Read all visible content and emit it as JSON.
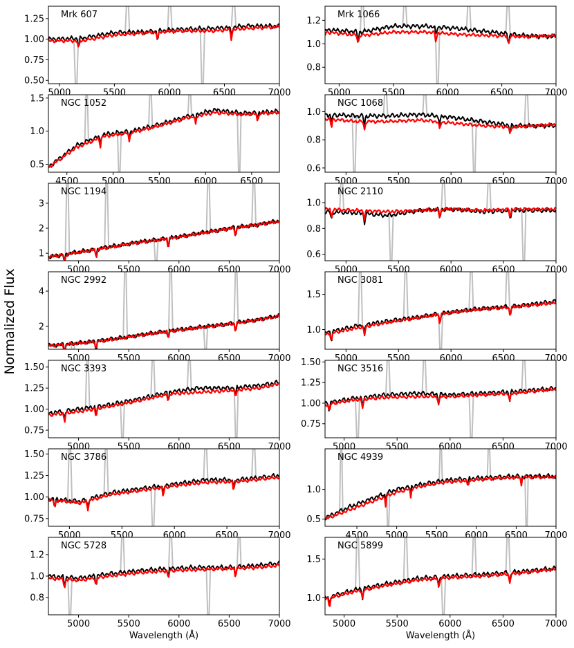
{
  "figure": {
    "ylabel": "Normalized Flux",
    "xlabel": "Wavelength ($\\AA$)"
  },
  "colors": {
    "observed": "#000000",
    "model": "#ff0000",
    "masked": "#bfbfbf",
    "axis": "#000000",
    "background": "#ffffff"
  },
  "chart_data": [
    {
      "type": "line",
      "title": "Mrk 607",
      "xlim": [
        4900,
        7000
      ],
      "ylim": [
        0.46,
        1.4
      ],
      "xticks": [
        5000,
        5500,
        6000,
        6500,
        7000
      ],
      "yticks": [
        0.5,
        0.75,
        1.0,
        1.25
      ],
      "ytick_labels": [
        "0.50",
        "0.75",
        "1.00",
        "1.25"
      ],
      "xlabel": "",
      "series": [
        {
          "name": "observed",
          "x": [
            4900,
            5200,
            5500,
            5800,
            6100,
            6400,
            6700,
            7000
          ],
          "values": [
            1.0,
            1.01,
            1.08,
            1.09,
            1.12,
            1.13,
            1.16,
            1.16
          ]
        },
        {
          "name": "model",
          "x": [
            4900,
            5200,
            5500,
            5800,
            6100,
            6400,
            6700,
            7000
          ],
          "values": [
            0.98,
            0.98,
            1.05,
            1.08,
            1.1,
            1.1,
            1.13,
            1.15
          ]
        }
      ]
    },
    {
      "type": "line",
      "title": "Mrk 1066",
      "xlim": [
        4870,
        7000
      ],
      "ylim": [
        0.66,
        1.32
      ],
      "xticks": [
        5000,
        5500,
        6000,
        6500,
        7000
      ],
      "yticks": [
        0.8,
        1.0,
        1.2
      ],
      "ytick_labels": [
        "0.8",
        "1.0",
        "1.2"
      ],
      "xlabel": "",
      "series": [
        {
          "name": "observed",
          "x": [
            4870,
            5200,
            5500,
            5800,
            6100,
            6400,
            6700,
            7000
          ],
          "values": [
            1.12,
            1.1,
            1.15,
            1.15,
            1.13,
            1.1,
            1.07,
            1.06
          ]
        },
        {
          "name": "model",
          "x": [
            4870,
            5200,
            5500,
            5800,
            6100,
            6400,
            6700,
            7000
          ],
          "values": [
            1.1,
            1.07,
            1.1,
            1.1,
            1.08,
            1.07,
            1.06,
            1.07
          ]
        }
      ]
    },
    {
      "type": "line",
      "title": "NGC 1052",
      "xlim": [
        4300,
        6800
      ],
      "ylim": [
        0.38,
        1.55
      ],
      "xticks": [
        4500,
        5000,
        5500,
        6000,
        6500
      ],
      "yticks": [
        0.5,
        1.0,
        1.5
      ],
      "ytick_labels": [
        "0.5",
        "1.0",
        "1.5"
      ],
      "xlabel": "",
      "series": [
        {
          "name": "observed",
          "x": [
            4300,
            4600,
            4900,
            5200,
            5500,
            5800,
            6100,
            6400,
            6800
          ],
          "values": [
            0.46,
            0.78,
            0.95,
            1.0,
            1.1,
            1.22,
            1.32,
            1.27,
            1.3
          ]
        },
        {
          "name": "model",
          "x": [
            4300,
            4600,
            4900,
            5200,
            5500,
            5800,
            6100,
            6400,
            6800
          ],
          "values": [
            0.45,
            0.75,
            0.92,
            0.98,
            1.08,
            1.2,
            1.28,
            1.25,
            1.28
          ]
        }
      ]
    },
    {
      "type": "line",
      "title": "NGC 1068",
      "xlim": [
        4800,
        7000
      ],
      "ylim": [
        0.57,
        1.12
      ],
      "xticks": [
        5000,
        5500,
        6000,
        6500,
        7000
      ],
      "yticks": [
        0.6,
        0.8,
        1.0
      ],
      "ytick_labels": [
        "0.6",
        "0.8",
        "1.0"
      ],
      "xlabel": "",
      "series": [
        {
          "name": "observed",
          "x": [
            4800,
            5100,
            5400,
            5700,
            6000,
            6300,
            6600,
            7000
          ],
          "values": [
            0.98,
            0.97,
            0.97,
            0.98,
            0.96,
            0.93,
            0.9,
            0.9
          ]
        },
        {
          "name": "model",
          "x": [
            4800,
            5100,
            5400,
            5700,
            6000,
            6300,
            6600,
            7000
          ],
          "values": [
            0.95,
            0.93,
            0.93,
            0.94,
            0.92,
            0.9,
            0.89,
            0.91
          ]
        }
      ]
    },
    {
      "type": "line",
      "title": "NGC 1194",
      "xlim": [
        4700,
        7000
      ],
      "ylim": [
        0.7,
        3.8
      ],
      "xticks": [
        5000,
        5500,
        6000,
        6500,
        7000
      ],
      "yticks": [
        1,
        2,
        3
      ],
      "ytick_labels": [
        "1",
        "2",
        "3"
      ],
      "xlabel": "",
      "series": [
        {
          "name": "observed",
          "x": [
            4700,
            5000,
            5300,
            5600,
            5900,
            6200,
            6500,
            6800,
            7000
          ],
          "values": [
            0.85,
            1.05,
            1.25,
            1.45,
            1.6,
            1.8,
            2.0,
            2.15,
            2.3
          ]
        },
        {
          "name": "model",
          "x": [
            4700,
            5000,
            5300,
            5600,
            5900,
            6200,
            6500,
            6800,
            7000
          ],
          "values": [
            0.85,
            1.03,
            1.23,
            1.43,
            1.58,
            1.78,
            1.98,
            2.15,
            2.28
          ]
        }
      ]
    },
    {
      "type": "line",
      "title": "NGC 2110",
      "xlim": [
        4800,
        7000
      ],
      "ylim": [
        0.55,
        1.15
      ],
      "xticks": [
        5000,
        5500,
        6000,
        6500,
        7000
      ],
      "yticks": [
        0.6,
        0.8,
        1.0
      ],
      "ytick_labels": [
        "0.6",
        "0.8",
        "1.0"
      ],
      "xlabel": "",
      "series": [
        {
          "name": "observed",
          "x": [
            4800,
            5100,
            5400,
            5700,
            6000,
            6300,
            6600,
            7000
          ],
          "values": [
            0.93,
            0.92,
            0.9,
            0.94,
            0.95,
            0.93,
            0.94,
            0.94
          ]
        },
        {
          "name": "model",
          "x": [
            4800,
            5100,
            5400,
            5700,
            6000,
            6300,
            6600,
            7000
          ],
          "values": [
            0.95,
            0.94,
            0.93,
            0.94,
            0.95,
            0.94,
            0.95,
            0.95
          ]
        }
      ]
    },
    {
      "type": "line",
      "title": "NGC 2992",
      "xlim": [
        4700,
        7000
      ],
      "ylim": [
        0.7,
        5.1
      ],
      "xticks": [
        5000,
        5500,
        6000,
        6500,
        7000
      ],
      "yticks": [
        2,
        4
      ],
      "ytick_labels": [
        "2",
        "4"
      ],
      "xlabel": "",
      "series": [
        {
          "name": "observed",
          "x": [
            4700,
            5000,
            5300,
            5600,
            5900,
            6200,
            6500,
            6800,
            7000
          ],
          "values": [
            0.9,
            1.05,
            1.25,
            1.5,
            1.75,
            1.95,
            2.15,
            2.4,
            2.6
          ]
        },
        {
          "name": "model",
          "x": [
            4700,
            5000,
            5300,
            5600,
            5900,
            6200,
            6500,
            6800,
            7000
          ],
          "values": [
            0.9,
            1.03,
            1.22,
            1.48,
            1.72,
            1.92,
            2.12,
            2.38,
            2.58
          ]
        }
      ]
    },
    {
      "type": "line",
      "title": "NGC 3081",
      "xlim": [
        4800,
        7000
      ],
      "ylim": [
        0.72,
        1.82
      ],
      "xticks": [
        5000,
        5500,
        6000,
        6500,
        7000
      ],
      "yticks": [
        1.0,
        1.5
      ],
      "ytick_labels": [
        "1.0",
        "1.5"
      ],
      "xlabel": "",
      "series": [
        {
          "name": "observed",
          "x": [
            4800,
            5100,
            5400,
            5700,
            6000,
            6300,
            6600,
            7000
          ],
          "values": [
            0.95,
            1.05,
            1.12,
            1.18,
            1.25,
            1.3,
            1.33,
            1.4
          ]
        },
        {
          "name": "model",
          "x": [
            4800,
            5100,
            5400,
            5700,
            6000,
            6300,
            6600,
            7000
          ],
          "values": [
            0.93,
            1.02,
            1.1,
            1.17,
            1.24,
            1.29,
            1.32,
            1.38
          ]
        }
      ]
    },
    {
      "type": "line",
      "title": "NGC 3393",
      "xlim": [
        4700,
        7000
      ],
      "ylim": [
        0.66,
        1.58
      ],
      "xticks": [
        5000,
        5500,
        6000,
        6500,
        7000
      ],
      "yticks": [
        0.75,
        1.0,
        1.25,
        1.5
      ],
      "ytick_labels": [
        "0.75",
        "1.00",
        "1.25",
        "1.50"
      ],
      "xlabel": "",
      "series": [
        {
          "name": "observed",
          "x": [
            4700,
            5000,
            5300,
            5600,
            5900,
            6200,
            6500,
            6800,
            7000
          ],
          "values": [
            0.95,
            1.0,
            1.05,
            1.12,
            1.2,
            1.25,
            1.25,
            1.28,
            1.32
          ]
        },
        {
          "name": "model",
          "x": [
            4700,
            5000,
            5300,
            5600,
            5900,
            6200,
            6500,
            6800,
            7000
          ],
          "values": [
            0.93,
            0.97,
            1.03,
            1.1,
            1.18,
            1.2,
            1.22,
            1.25,
            1.3
          ]
        }
      ]
    },
    {
      "type": "line",
      "title": "NGC 3516",
      "xlim": [
        4820,
        7000
      ],
      "ylim": [
        0.58,
        1.52
      ],
      "xticks": [
        5000,
        5500,
        6000,
        6500,
        7000
      ],
      "yticks": [
        0.75,
        1.0,
        1.25,
        1.5
      ],
      "ytick_labels": [
        "0.75",
        "1.00",
        "1.25",
        "1.50"
      ],
      "xlabel": "",
      "series": [
        {
          "name": "observed",
          "x": [
            4820,
            5100,
            5400,
            5700,
            6000,
            6300,
            6600,
            7000
          ],
          "values": [
            1.0,
            1.06,
            1.1,
            1.12,
            1.1,
            1.12,
            1.14,
            1.18
          ]
        },
        {
          "name": "model",
          "x": [
            4820,
            5100,
            5400,
            5700,
            6000,
            6300,
            6600,
            7000
          ],
          "values": [
            0.98,
            1.04,
            1.07,
            1.08,
            1.08,
            1.1,
            1.12,
            1.17
          ]
        }
      ]
    },
    {
      "type": "line",
      "title": "NGC 3786",
      "xlim": [
        4800,
        7000
      ],
      "ylim": [
        0.66,
        1.56
      ],
      "xticks": [
        5000,
        5500,
        6000,
        6500,
        7000
      ],
      "yticks": [
        0.75,
        1.0,
        1.25,
        1.5
      ],
      "ytick_labels": [
        "0.75",
        "1.00",
        "1.25",
        "1.50"
      ],
      "xlabel": "",
      "series": [
        {
          "name": "observed",
          "x": [
            4800,
            5100,
            5400,
            5700,
            6000,
            6300,
            6600,
            7000
          ],
          "values": [
            0.98,
            0.95,
            1.05,
            1.1,
            1.15,
            1.2,
            1.2,
            1.25
          ]
        },
        {
          "name": "model",
          "x": [
            4800,
            5100,
            5400,
            5700,
            6000,
            6300,
            6600,
            7000
          ],
          "values": [
            0.97,
            0.93,
            1.03,
            1.08,
            1.13,
            1.17,
            1.18,
            1.23
          ]
        }
      ]
    },
    {
      "type": "line",
      "title": "NGC 4939",
      "xlim": [
        4100,
        7000
      ],
      "ylim": [
        0.38,
        1.68
      ],
      "xticks": [
        4500,
        5000,
        5500,
        6000,
        6500,
        7000
      ],
      "yticks": [
        0.5,
        1.0
      ],
      "ytick_labels": [
        "0.5",
        "1.0"
      ],
      "xlabel": "",
      "series": [
        {
          "name": "observed",
          "x": [
            4100,
            4400,
            4700,
            5000,
            5300,
            5600,
            5900,
            6200,
            6500,
            7000
          ],
          "values": [
            0.52,
            0.7,
            0.85,
            1.0,
            1.08,
            1.15,
            1.18,
            1.2,
            1.22,
            1.22
          ]
        },
        {
          "name": "model",
          "x": [
            4100,
            4400,
            4700,
            5000,
            5300,
            5600,
            5900,
            6200,
            6500,
            7000
          ],
          "values": [
            0.5,
            0.65,
            0.8,
            0.95,
            1.05,
            1.12,
            1.15,
            1.18,
            1.2,
            1.21
          ]
        }
      ]
    },
    {
      "type": "line",
      "title": "NGC 5728",
      "xlim": [
        4700,
        7000
      ],
      "ylim": [
        0.64,
        1.36
      ],
      "xticks": [
        5000,
        5500,
        6000,
        6500,
        7000
      ],
      "yticks": [
        0.8,
        1.0,
        1.2
      ],
      "ytick_labels": [
        "0.8",
        "1.0",
        "1.2"
      ],
      "xlabel": "Wavelength ($\\AA$)",
      "series": [
        {
          "name": "observed",
          "x": [
            4700,
            5000,
            5300,
            5600,
            5900,
            6200,
            6500,
            6800,
            7000
          ],
          "values": [
            1.0,
            0.98,
            1.02,
            1.05,
            1.07,
            1.08,
            1.08,
            1.1,
            1.12
          ]
        },
        {
          "name": "model",
          "x": [
            4700,
            5000,
            5300,
            5600,
            5900,
            6200,
            6500,
            6800,
            7000
          ],
          "values": [
            0.98,
            0.96,
            1.0,
            1.03,
            1.05,
            1.06,
            1.07,
            1.08,
            1.1
          ]
        }
      ]
    },
    {
      "type": "line",
      "title": "NGC 5899",
      "xlim": [
        4820,
        7000
      ],
      "ylim": [
        0.78,
        1.78
      ],
      "xticks": [
        5000,
        5500,
        6000,
        6500,
        7000
      ],
      "yticks": [
        1.0,
        1.5
      ],
      "ytick_labels": [
        "1.0",
        "1.5"
      ],
      "xlabel": "Wavelength ($\\AA$)",
      "series": [
        {
          "name": "observed",
          "x": [
            4820,
            5100,
            5400,
            5700,
            6000,
            6300,
            6600,
            7000
          ],
          "values": [
            1.0,
            1.1,
            1.18,
            1.25,
            1.28,
            1.3,
            1.33,
            1.38
          ]
        },
        {
          "name": "model",
          "x": [
            4820,
            5100,
            5400,
            5700,
            6000,
            6300,
            6600,
            7000
          ],
          "values": [
            0.98,
            1.08,
            1.16,
            1.23,
            1.26,
            1.28,
            1.31,
            1.37
          ]
        }
      ]
    }
  ]
}
